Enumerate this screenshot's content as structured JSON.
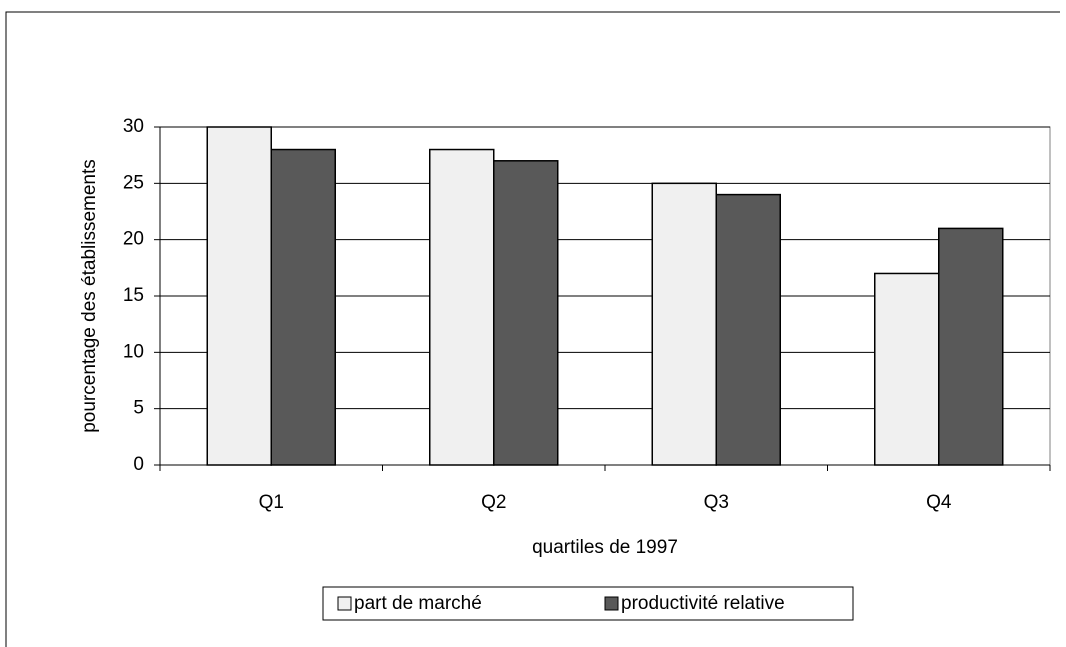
{
  "chart_data": {
    "type": "bar",
    "categories": [
      "Q1",
      "Q2",
      "Q3",
      "Q4"
    ],
    "series": [
      {
        "name": "part de marché",
        "color": "#f0f0f0",
        "values": [
          30,
          28,
          25,
          17
        ]
      },
      {
        "name": "productivité relative",
        "color": "#595959",
        "values": [
          28,
          27,
          24,
          21
        ]
      }
    ],
    "x_label": "quartiles de 1997",
    "y_label": "pourcentage des établissements",
    "ylim": [
      0,
      30
    ],
    "yticks": [
      0,
      5,
      10,
      15,
      20,
      25,
      30
    ],
    "grid": true,
    "legend": "bottom"
  }
}
